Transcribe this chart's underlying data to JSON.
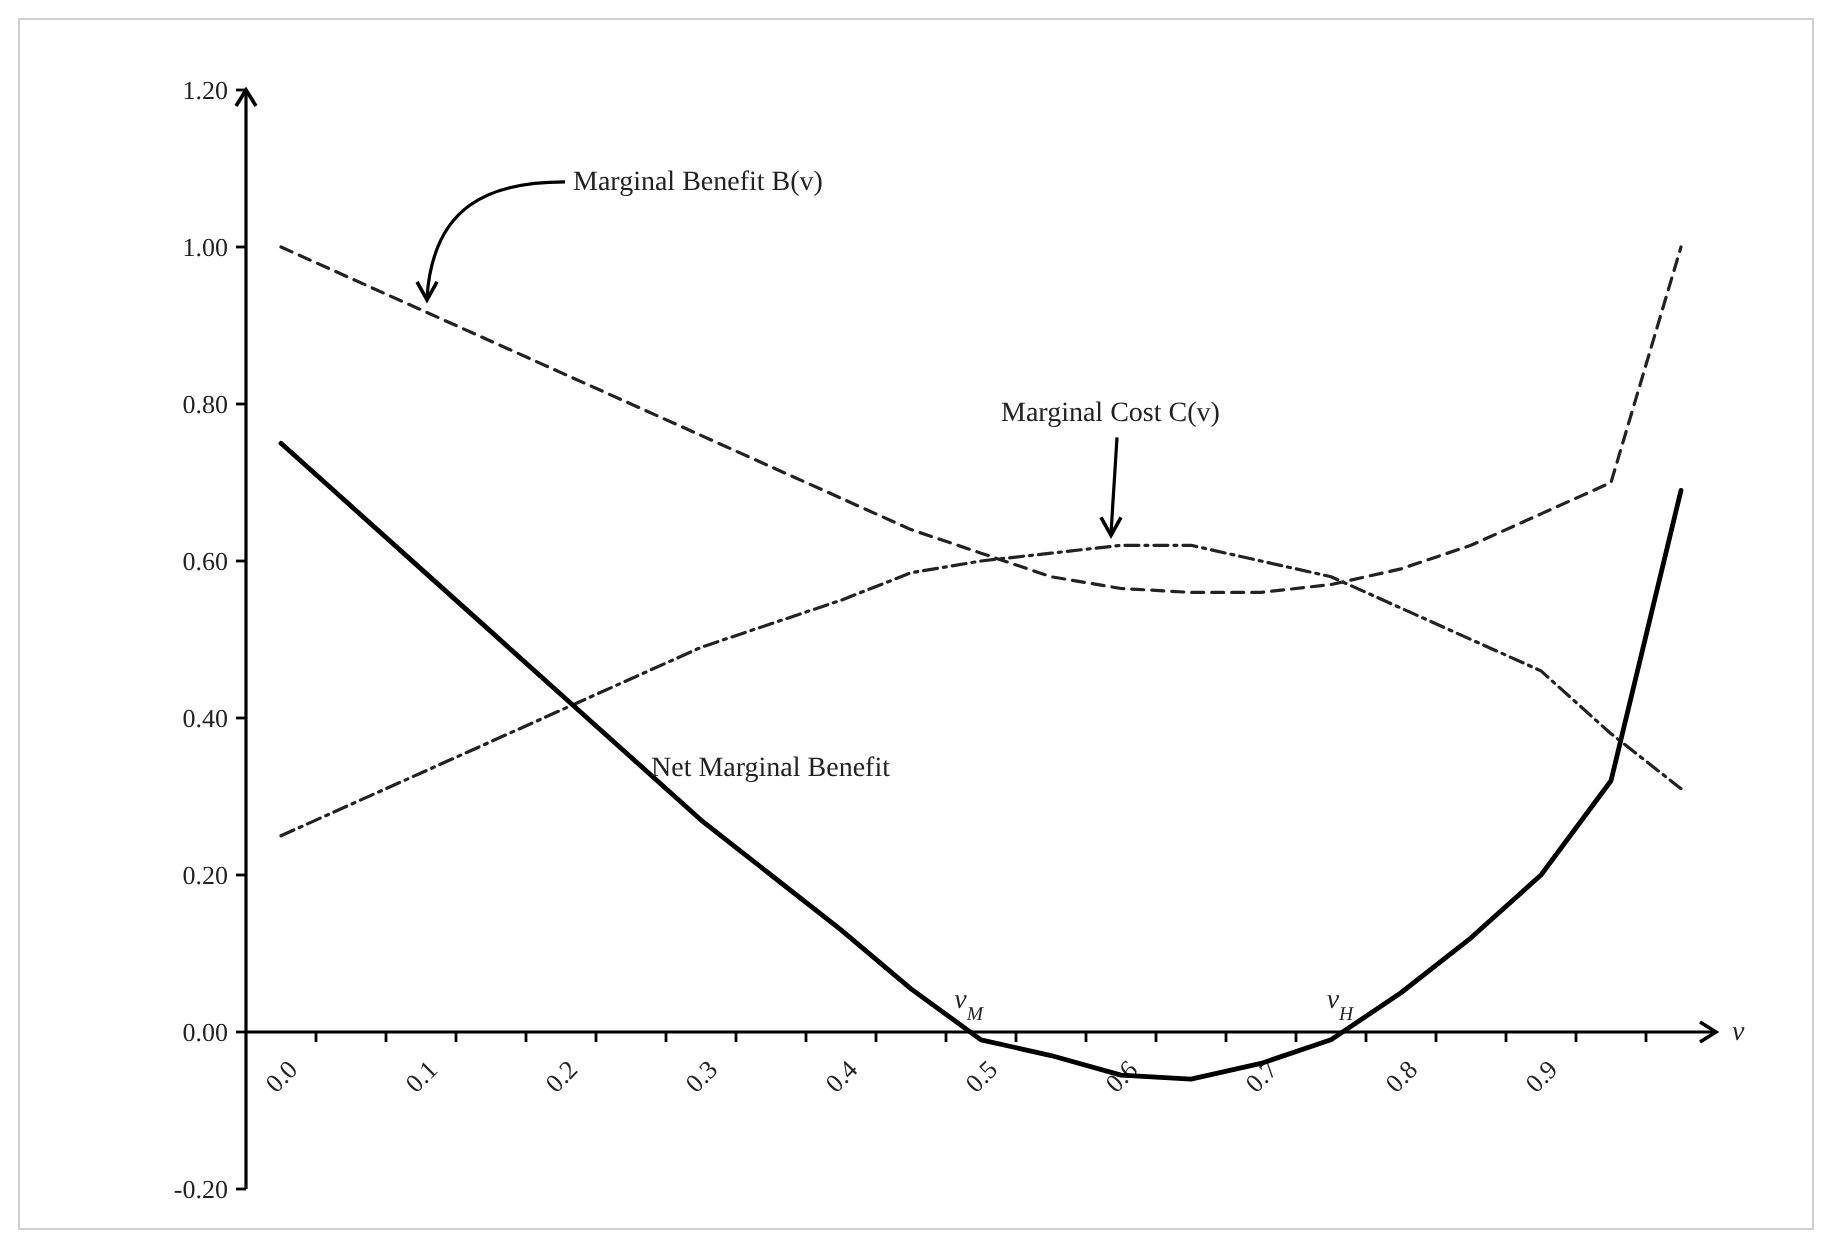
{
  "chart_data": {
    "type": "line",
    "categories": [
      "0.0",
      null,
      "0.1",
      null,
      "0.2",
      null,
      "0.3",
      null,
      "0.4",
      null,
      "0.5",
      null,
      "0.6",
      null,
      "0.7",
      null,
      "0.8",
      null,
      "0.9",
      null,
      null
    ],
    "series": [
      {
        "color": "#222222",
        "line_style": "dashed",
        "values": [
          1.0,
          0.96,
          0.92,
          0.88,
          0.84,
          0.8,
          0.76,
          0.72,
          0.68,
          0.64,
          0.61,
          0.58,
          0.565,
          0.56,
          0.56,
          0.57,
          0.59,
          0.62,
          0.66,
          0.7,
          1.0
        ]
      },
      {
        "color": "#222222",
        "line_style": "dotted",
        "values": [
          0.25,
          0.29,
          0.33,
          0.37,
          0.41,
          0.45,
          0.49,
          0.52,
          0.55,
          0.585,
          0.6,
          0.61,
          0.62,
          0.62,
          0.6,
          0.58,
          0.54,
          0.5,
          0.46,
          0.38,
          0.31
        ]
      },
      {
        "color": "#000000",
        "line_style": "solid",
        "values": [
          0.75,
          0.67,
          0.59,
          0.51,
          0.43,
          0.35,
          0.27,
          0.2,
          0.13,
          0.055,
          -0.01,
          -0.03,
          -0.055,
          -0.06,
          -0.04,
          -0.01,
          0.05,
          0.12,
          0.2,
          0.32,
          0.69
        ]
      }
    ],
    "xlabel": "v",
    "ylim": [
      -0.2,
      1.2
    ],
    "yticks": [
      {
        "value": -0.2,
        "label": "-0.20"
      },
      {
        "value": 0,
        "label": "0.00"
      },
      {
        "value": 0.2,
        "label": "0.20"
      },
      {
        "value": 0.4,
        "label": "0.40"
      },
      {
        "value": 0.6,
        "label": "0.60"
      },
      {
        "value": 0.8,
        "label": "0.80"
      },
      {
        "value": 1.0,
        "label": "1.00"
      },
      {
        "value": 1.2,
        "label": "1.20"
      }
    ],
    "annotations": [
      {
        "text": "Marginal Benefit  B(v)",
        "x": "0.1",
        "y": 0.92
      },
      {
        "text": "Marginal Cost  C(v)",
        "x": "0.6",
        "y": 0.62
      },
      "Net Marginal Benefit",
      "v$_{M}$",
      "v$_{H}$"
    ],
    "grid": false,
    "marker": "none"
  }
}
